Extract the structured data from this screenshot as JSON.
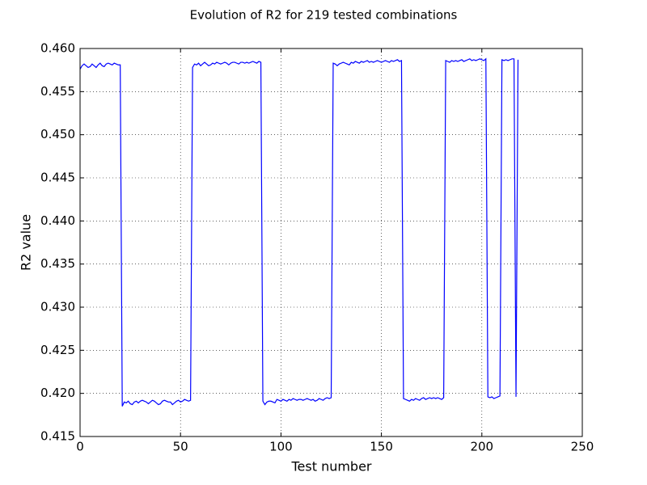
{
  "chart_data": {
    "type": "line",
    "title": "Evolution of R2 for 219 tested combinations",
    "xlabel": "Test number",
    "ylabel": "R2 value",
    "color": "#0000ff",
    "grid": true,
    "xlim": [
      0,
      250
    ],
    "xticks": [
      0,
      50,
      100,
      150,
      200,
      250
    ],
    "ylim": [
      0.415,
      0.46
    ],
    "yticks": [
      0.415,
      {
        "value": 0.42,
        "label": "0.420"
      },
      0.425,
      {
        "value": 0.43,
        "label": "0.430"
      },
      0.435,
      {
        "value": 0.44,
        "label": "0.440"
      },
      0.445,
      {
        "value": 0.45,
        "label": "0.450"
      },
      0.455,
      {
        "value": 0.46,
        "label": "0.460"
      }
    ],
    "x": [
      0,
      1,
      2,
      3,
      4,
      5,
      6,
      7,
      8,
      9,
      10,
      11,
      12,
      13,
      14,
      15,
      16,
      17,
      18,
      19,
      20,
      21,
      22,
      23,
      24,
      25,
      26,
      27,
      28,
      29,
      30,
      31,
      32,
      33,
      34,
      35,
      36,
      37,
      38,
      39,
      40,
      41,
      42,
      43,
      44,
      45,
      46,
      47,
      48,
      49,
      50,
      51,
      52,
      53,
      54,
      55,
      56,
      57,
      58,
      59,
      60,
      61,
      62,
      63,
      64,
      65,
      66,
      67,
      68,
      69,
      70,
      71,
      72,
      73,
      74,
      75,
      76,
      77,
      78,
      79,
      80,
      81,
      82,
      83,
      84,
      85,
      86,
      87,
      88,
      89,
      90,
      91,
      92,
      93,
      94,
      95,
      96,
      97,
      98,
      99,
      100,
      101,
      102,
      103,
      104,
      105,
      106,
      107,
      108,
      109,
      110,
      111,
      112,
      113,
      114,
      115,
      116,
      117,
      118,
      119,
      120,
      121,
      122,
      123,
      124,
      125,
      126,
      127,
      128,
      129,
      130,
      131,
      132,
      133,
      134,
      135,
      136,
      137,
      138,
      139,
      140,
      141,
      142,
      143,
      144,
      145,
      146,
      147,
      148,
      149,
      150,
      151,
      152,
      153,
      154,
      155,
      156,
      157,
      158,
      159,
      160,
      161,
      162,
      163,
      164,
      165,
      166,
      167,
      168,
      169,
      170,
      171,
      172,
      173,
      174,
      175,
      176,
      177,
      178,
      179,
      180,
      181,
      182,
      183,
      184,
      185,
      186,
      187,
      188,
      189,
      190,
      191,
      192,
      193,
      194,
      195,
      196,
      197,
      198,
      199,
      200,
      201,
      202,
      203,
      204,
      205,
      206,
      207,
      208,
      209,
      210,
      211,
      212,
      213,
      214,
      215,
      216,
      217,
      218
    ],
    "values": [
      0.4576,
      0.458,
      0.4582,
      0.458,
      0.4578,
      0.4579,
      0.4582,
      0.458,
      0.4578,
      0.4581,
      0.4583,
      0.458,
      0.4579,
      0.4582,
      0.4583,
      0.4582,
      0.4581,
      0.4583,
      0.4582,
      0.4581,
      0.4581,
      0.4185,
      0.419,
      0.4189,
      0.4191,
      0.4188,
      0.4187,
      0.419,
      0.4191,
      0.4189,
      0.4191,
      0.4192,
      0.4191,
      0.419,
      0.4188,
      0.419,
      0.4192,
      0.4191,
      0.4189,
      0.4187,
      0.4188,
      0.4191,
      0.4192,
      0.4191,
      0.419,
      0.419,
      0.4187,
      0.4189,
      0.4191,
      0.4192,
      0.419,
      0.4191,
      0.4193,
      0.4192,
      0.4191,
      0.4192,
      0.4578,
      0.4582,
      0.4581,
      0.4583,
      0.458,
      0.4582,
      0.4584,
      0.4582,
      0.458,
      0.4581,
      0.4583,
      0.4582,
      0.4584,
      0.4583,
      0.4582,
      0.4583,
      0.4584,
      0.4583,
      0.4581,
      0.4583,
      0.4584,
      0.4584,
      0.4583,
      0.4582,
      0.4584,
      0.4584,
      0.4583,
      0.4584,
      0.4583,
      0.4584,
      0.4585,
      0.4584,
      0.4583,
      0.4585,
      0.4584,
      0.4191,
      0.4187,
      0.419,
      0.4191,
      0.4191,
      0.419,
      0.4189,
      0.4193,
      0.4192,
      0.4191,
      0.4193,
      0.4192,
      0.4191,
      0.4193,
      0.4192,
      0.4194,
      0.4193,
      0.4192,
      0.4193,
      0.4193,
      0.4192,
      0.4193,
      0.4194,
      0.4193,
      0.4192,
      0.4193,
      0.4191,
      0.4192,
      0.4194,
      0.4193,
      0.4192,
      0.4194,
      0.4195,
      0.4194,
      0.4195,
      0.4583,
      0.4582,
      0.458,
      0.4582,
      0.4583,
      0.4584,
      0.4583,
      0.4582,
      0.4581,
      0.4584,
      0.4583,
      0.4585,
      0.4584,
      0.4583,
      0.4585,
      0.4584,
      0.4585,
      0.4586,
      0.4584,
      0.4585,
      0.4584,
      0.4585,
      0.4586,
      0.4585,
      0.4584,
      0.4585,
      0.4586,
      0.4585,
      0.4584,
      0.4586,
      0.4585,
      0.4586,
      0.4587,
      0.4585,
      0.4586,
      0.4194,
      0.4193,
      0.4192,
      0.4191,
      0.4193,
      0.4192,
      0.4194,
      0.4193,
      0.4192,
      0.4194,
      0.4195,
      0.4193,
      0.4194,
      0.4195,
      0.4194,
      0.4195,
      0.4194,
      0.4195,
      0.4194,
      0.4193,
      0.4195,
      0.4586,
      0.4585,
      0.4584,
      0.4586,
      0.4585,
      0.4586,
      0.4585,
      0.4586,
      0.4587,
      0.4585,
      0.4586,
      0.4587,
      0.4588,
      0.4586,
      0.4587,
      0.4586,
      0.4587,
      0.4588,
      0.4587,
      0.4586,
      0.4588,
      0.4196,
      0.4195,
      0.4196,
      0.4194,
      0.4195,
      0.4196,
      0.4197,
      0.4587,
      0.4586,
      0.4587,
      0.4586,
      0.4587,
      0.4588,
      0.4588,
      0.4196,
      0.4587
    ]
  }
}
